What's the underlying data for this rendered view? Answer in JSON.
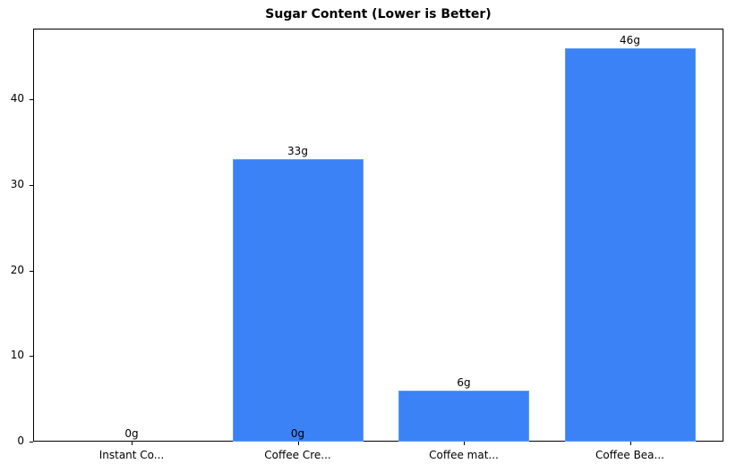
{
  "chart_data": {
    "type": "bar",
    "title": "Sugar Content (Lower is Better)",
    "xlabel": "",
    "ylabel": "",
    "categories": [
      "Instant Co...",
      "Coffee Cre...",
      "Coffee mat...",
      "Coffee Bea..."
    ],
    "values": [
      0,
      33,
      6,
      46
    ],
    "value_labels": [
      "0g",
      "33g",
      "6g",
      "46g"
    ],
    "extra_annotations": [
      {
        "category": "Coffee Cre...",
        "text": "0g",
        "position": "bar base"
      }
    ],
    "ylim": [
      0,
      48.3
    ],
    "yticks": [
      0,
      10,
      20,
      30,
      40
    ],
    "grid": false,
    "legend": null,
    "bar_color": "#3b82f6"
  }
}
